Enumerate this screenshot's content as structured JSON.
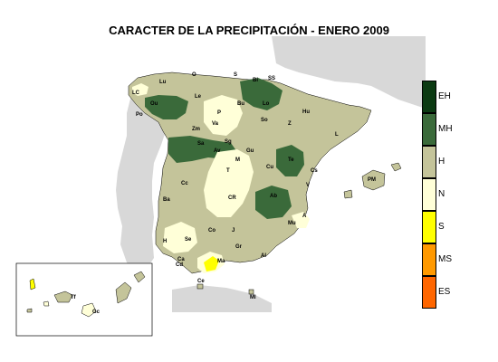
{
  "title": "CARACTER DE LA PRECIPITACIÓN - ENERO 2009",
  "legend": {
    "items": [
      {
        "code": "EH",
        "color": "#0b3a12"
      },
      {
        "code": "MH",
        "color": "#3a6a3a"
      },
      {
        "code": "H",
        "color": "#c4c49a"
      },
      {
        "code": "N",
        "color": "#ffffd8"
      },
      {
        "code": "S",
        "color": "#ffff00"
      },
      {
        "code": "MS",
        "color": "#ff9900"
      },
      {
        "code": "ES",
        "color": "#ff6600"
      }
    ]
  },
  "cities": [
    "Lu",
    "Ou",
    "Po",
    "Le",
    "Bi",
    "SS",
    "S",
    "Bu",
    "P",
    "Va",
    "Lo",
    "Hu",
    "So",
    "Z",
    "Sa",
    "Sg",
    "Av",
    "Gu",
    "Zm",
    "M",
    "T",
    "L",
    "Cs",
    "Te",
    "Cu",
    "Cc",
    "Ba",
    "CR",
    "Ab",
    "V",
    "A",
    "Mu",
    "Co",
    "J",
    "Se",
    "Gr",
    "Al",
    "H",
    "Ma",
    "Ca",
    "Ce",
    "Ml",
    "PM",
    "Tf",
    "Gc",
    "Cd",
    "LC",
    "O"
  ],
  "colors": {
    "sea": "#ffffff",
    "land_other": "#d8d8d8",
    "border": "#000000"
  }
}
